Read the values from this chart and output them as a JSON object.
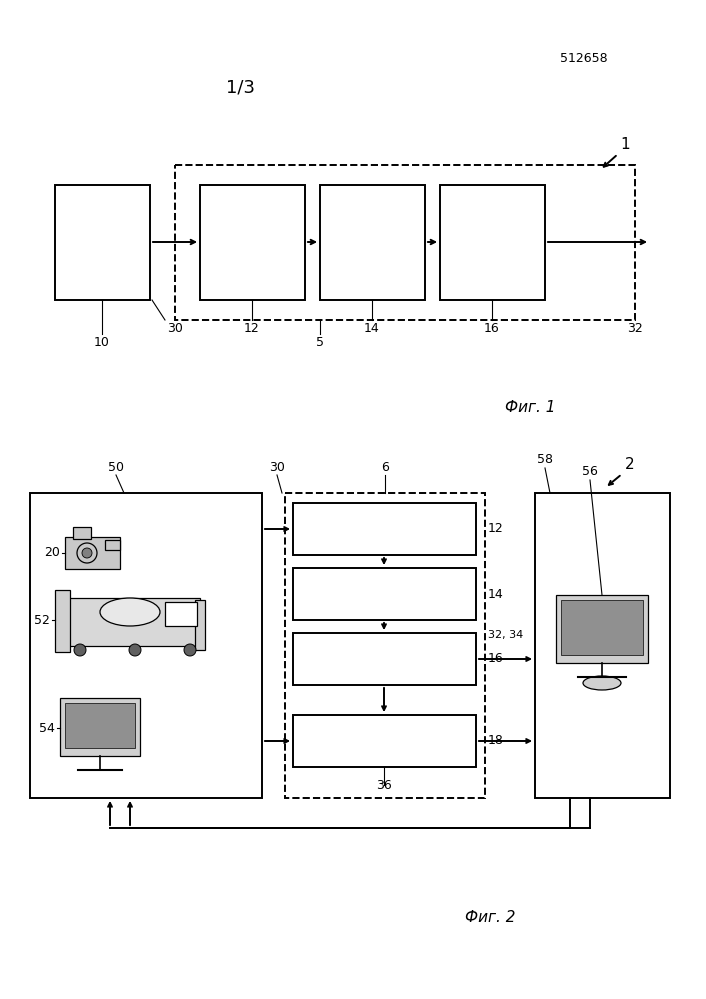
{
  "title_page": "512658",
  "subtitle": "1/3",
  "fig1_label": "Фиг. 1",
  "fig2_label": "Фиг. 2",
  "bg_color": "#ffffff",
  "line_color": "#000000"
}
